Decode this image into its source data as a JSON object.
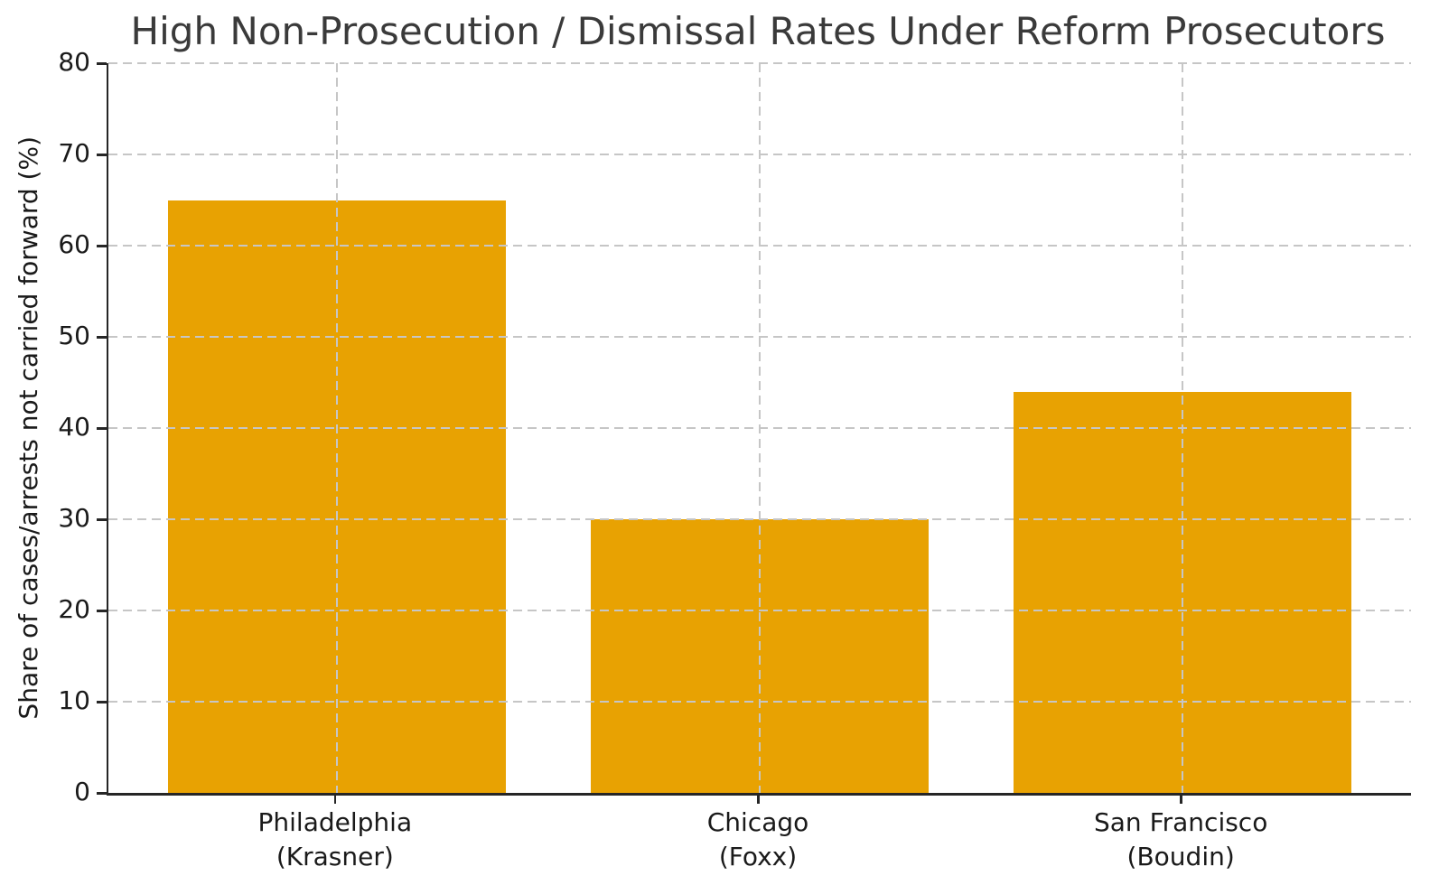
{
  "chart_data": {
    "type": "bar",
    "title": "High Non-Prosecution / Dismissal Rates Under Reform Prosecutors",
    "xlabel": "",
    "ylabel": "Share of cases/arrests not carried forward (%)",
    "categories": [
      "Philadelphia\n(Krasner)",
      "Chicago\n(Foxx)",
      "San Francisco\n(Boudin)"
    ],
    "values": [
      65,
      30,
      44
    ],
    "ylim": [
      0,
      80
    ],
    "yticks": [
      0,
      10,
      20,
      30,
      40,
      50,
      60,
      70,
      80
    ],
    "grid": "dashed, horizontal and vertical, drawn over bars",
    "legend": "none",
    "colors": {
      "bar": "#E8A202",
      "grid": "#c6c6c6",
      "axis": "#262626",
      "title_text": "#3a3a3a",
      "tick_text": "#1a1a1a",
      "background": "#ffffff"
    }
  }
}
